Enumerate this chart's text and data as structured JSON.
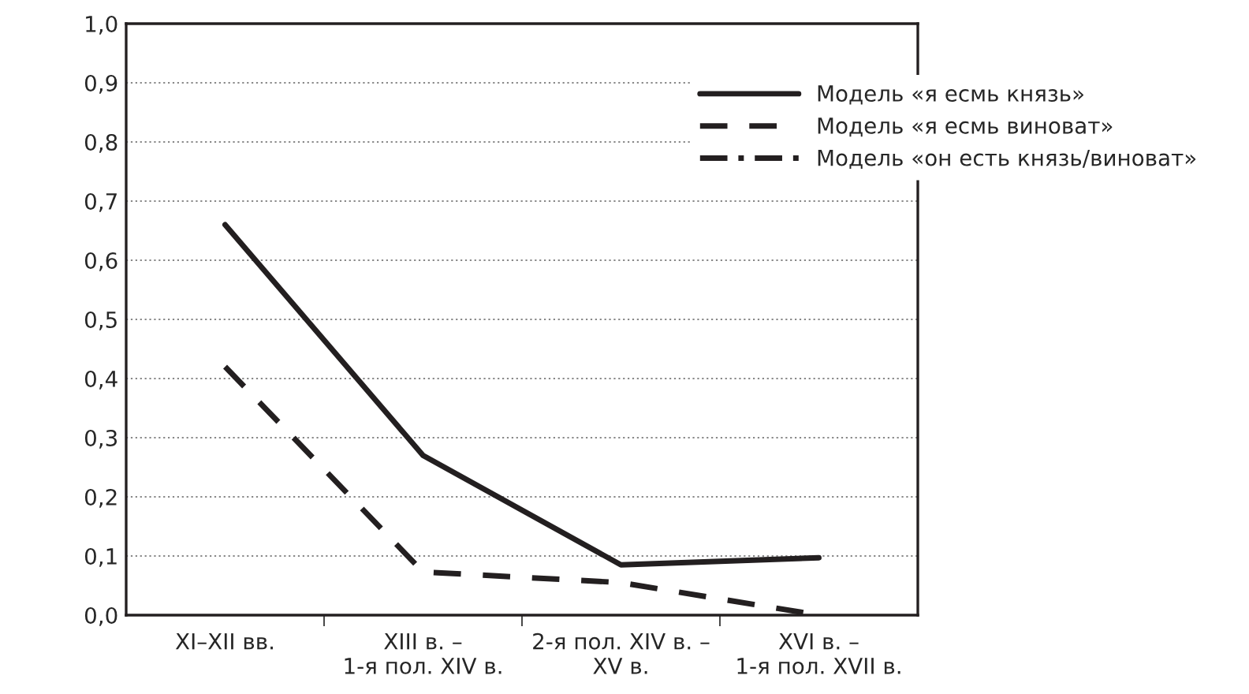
{
  "chart_data": {
    "type": "line",
    "categories": [
      "XI–XII вв.",
      "XIII в. –\n1-я пол. XIV в.",
      "2-я пол. XIV в. –\nXV в.",
      "XVI в. –\n1-я пол. XVII в."
    ],
    "series": [
      {
        "name": "Модель «я есмь князь»",
        "color": "#231f20",
        "line_style": "solid",
        "values": [
          0.66,
          0.27,
          0.085,
          0.097
        ]
      },
      {
        "name": "Модель «я есмь виноват»",
        "color": "#231f20",
        "line_style": "dashed",
        "values": [
          0.42,
          0.073,
          0.055,
          0.0
        ]
      },
      {
        "name": "Модель «он есть князь/виноват»",
        "color": "#231f20",
        "line_style": "dashdot",
        "values": [
          null,
          null,
          null,
          null
        ]
      }
    ],
    "ylim": [
      0,
      1
    ],
    "yticks": [
      {
        "value": 0,
        "label": "0,0"
      },
      {
        "value": 0.1,
        "label": "0,1"
      },
      {
        "value": 0.2,
        "label": "0,2"
      },
      {
        "value": 0.3,
        "label": "0,3"
      },
      {
        "value": 0.4,
        "label": "0,4"
      },
      {
        "value": 0.5,
        "label": "0,5"
      },
      {
        "value": 0.6,
        "label": "0,6"
      },
      {
        "value": 0.7,
        "label": "0,7"
      },
      {
        "value": 0.8,
        "label": "0,8"
      },
      {
        "value": 0.9,
        "label": "0,9"
      },
      {
        "value": 1,
        "label": "1,0"
      }
    ],
    "grid": "y",
    "legend": "top right",
    "marker": "none"
  }
}
